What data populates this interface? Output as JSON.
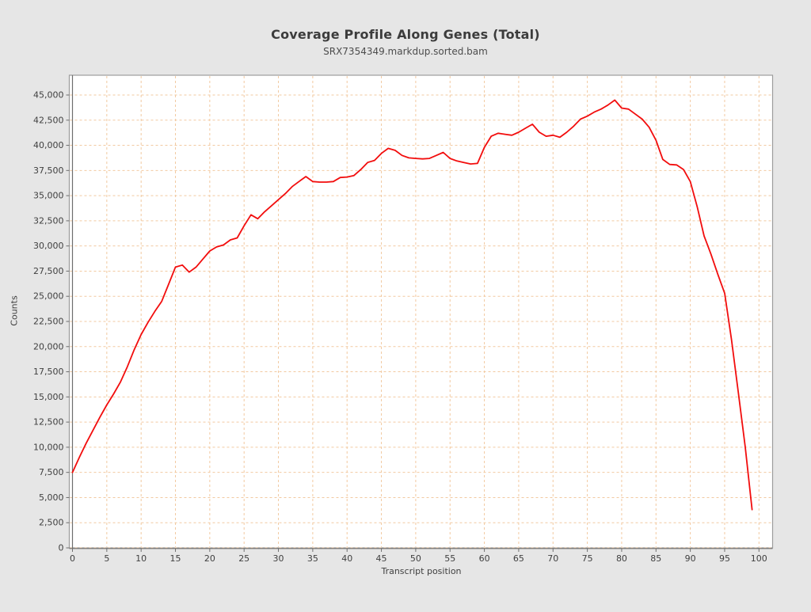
{
  "header": {
    "title": "Coverage Profile Along Genes (Total)",
    "subtitle": "SRX7354349.markdup.sorted.bam"
  },
  "chart_data": {
    "type": "line",
    "title": "Coverage Profile Along Genes (Total)",
    "subtitle": "SRX7354349.markdup.sorted.bam",
    "xlabel": "Transcript position",
    "ylabel": "Counts",
    "xlim": [
      0,
      102
    ],
    "ylim": [
      0,
      46900
    ],
    "grid": "dashed-on",
    "legend_position": "none",
    "x_ticks": [
      0,
      5,
      10,
      15,
      20,
      25,
      30,
      35,
      40,
      45,
      50,
      55,
      60,
      65,
      70,
      75,
      80,
      85,
      90,
      95,
      100
    ],
    "y_ticks": [
      0,
      2500,
      5000,
      7500,
      10000,
      12500,
      15000,
      17500,
      20000,
      22500,
      25000,
      27500,
      30000,
      32500,
      35000,
      37500,
      40000,
      42500,
      45000
    ],
    "series": [
      {
        "name": "SRX7354349.markdup.sorted.bam",
        "color": "#f20d0d",
        "x_start": 0,
        "x_step": 1,
        "values": [
          7500,
          9000,
          10400,
          11700,
          13000,
          14200,
          15300,
          16500,
          18000,
          19700,
          21200,
          22400,
          23500,
          24500,
          26200,
          27900,
          28100,
          27400,
          27900,
          28700,
          29500,
          29900,
          30100,
          30600,
          30800,
          32000,
          33100,
          32700,
          33400,
          34000,
          34600,
          35200,
          35900,
          36400,
          36900,
          36400,
          36350,
          36350,
          36400,
          36800,
          36850,
          37000,
          37600,
          38300,
          38500,
          39200,
          39700,
          39500,
          39000,
          38750,
          38700,
          38650,
          38700,
          39000,
          39300,
          38700,
          38450,
          38300,
          38150,
          38200,
          39800,
          40900,
          41200,
          41100,
          41000,
          41300,
          41700,
          42100,
          41300,
          40900,
          41000,
          40800,
          41300,
          41900,
          42600,
          42900,
          43300,
          43600,
          44000,
          44500,
          43700,
          43600,
          43100,
          42600,
          41800,
          40500,
          38600,
          38100,
          38050,
          37600,
          36400,
          33900,
          31000,
          29200,
          27200,
          25300,
          20700,
          15400,
          10000,
          3800
        ]
      }
    ],
    "colors": {
      "page_background": "#e6e6e6",
      "plot_background": "#ffffff",
      "grid": "#f2c9a0",
      "plot_border": "#9c9c9c",
      "axis_line": "#6e6e6e",
      "tick_label": "#3f3f3f",
      "title_text": "#3c3c3c",
      "line": "#f20d0d"
    }
  }
}
